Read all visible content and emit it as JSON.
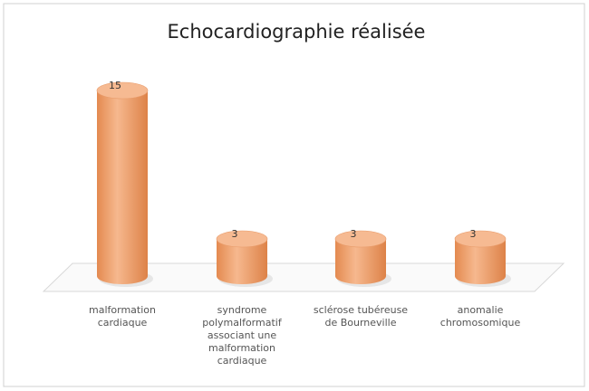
{
  "chart_data": {
    "type": "bar",
    "title": "Echocardiographie réalisée",
    "categories": [
      "malformation cardiaque",
      "syndrome polymalformatif associant une malformation cardiaque",
      "sclérose tubéreuse de Bourneville",
      "anomalie chromosomique"
    ],
    "values": [
      15,
      3,
      3,
      3
    ],
    "color": "#eea070"
  }
}
